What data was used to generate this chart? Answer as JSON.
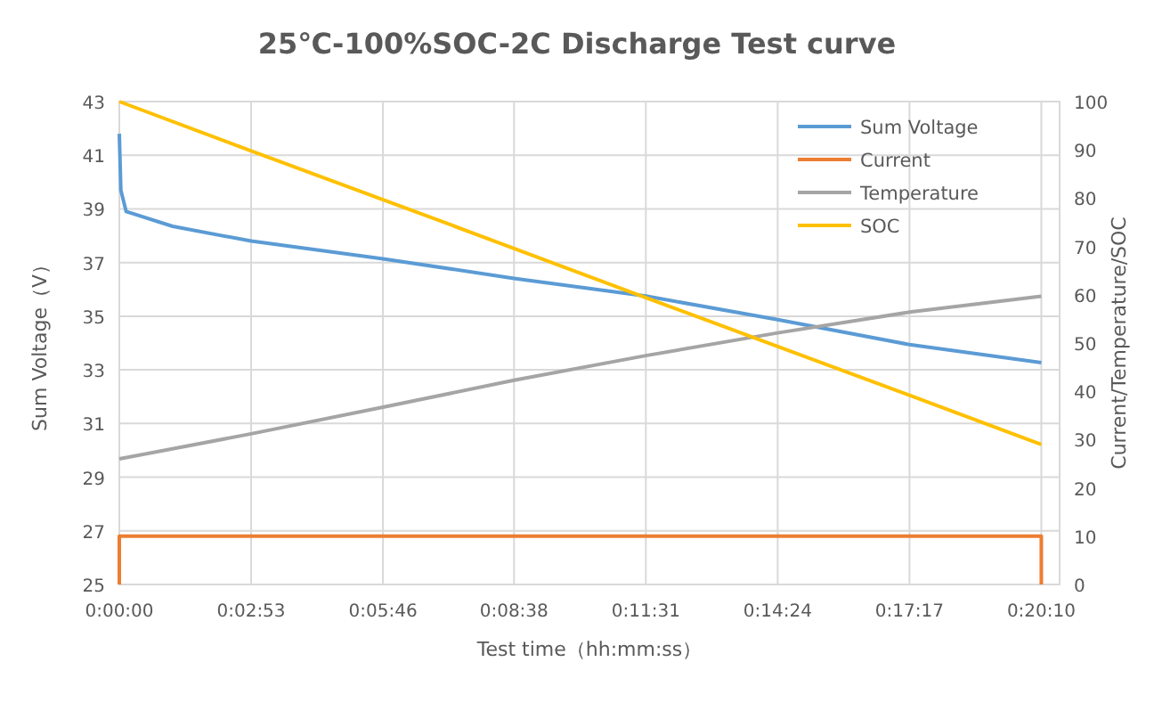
{
  "chart_data": {
    "type": "line",
    "title": "25℃-100%SOC-2C Discharge Test curve",
    "xlabel": "Test time（hh:mm:ss）",
    "ylabel": "Sum Voltage（V）",
    "y2label": "Current/Temperature/SOC",
    "xlim": [
      0,
      1234
    ],
    "ylim": [
      25,
      43
    ],
    "y2lim": [
      0,
      100
    ],
    "xticks": [
      {
        "value": 0,
        "label": "0:00:00"
      },
      {
        "value": 173,
        "label": "0:02:53"
      },
      {
        "value": 346,
        "label": "0:05:46"
      },
      {
        "value": 518,
        "label": "0:08:38"
      },
      {
        "value": 691,
        "label": "0:11:31"
      },
      {
        "value": 864,
        "label": "0:14:24"
      },
      {
        "value": 1037,
        "label": "0:17:17"
      },
      {
        "value": 1210,
        "label": "0:20:10"
      }
    ],
    "yticks": [
      25,
      27,
      29,
      31,
      33,
      35,
      37,
      39,
      41,
      43
    ],
    "y2ticks": [
      0,
      10,
      20,
      30,
      40,
      50,
      60,
      70,
      80,
      90,
      100
    ],
    "grid": true,
    "legend": "top right",
    "marker": "none",
    "line_style": "solid",
    "series": [
      {
        "name": "Sum Voltage",
        "color": "#5b9bd5",
        "x": [
          0,
          2,
          9,
          70,
          173,
          346,
          518,
          691,
          864,
          1037,
          1210
        ],
        "values": [
          41.8,
          39.7,
          38.9,
          38.35,
          37.8,
          37.14,
          36.41,
          35.75,
          34.87,
          33.94,
          33.27
        ]
      },
      {
        "name": "Current",
        "color": "#ed7d31",
        "axis": "y2",
        "x": [
          0,
          0,
          1210,
          1210
        ],
        "values": [
          0,
          10,
          10,
          0
        ]
      },
      {
        "name": "Temperature",
        "color": "#a5a5a5",
        "axis": "y2",
        "x": [
          0,
          173,
          346,
          518,
          691,
          864,
          1037,
          1210
        ],
        "values": [
          26,
          31.2,
          36.7,
          42.3,
          47.4,
          52.1,
          56.4,
          59.7
        ]
      },
      {
        "name": "SOC",
        "color": "#ffc000",
        "axis": "y2",
        "x": [
          0,
          173,
          346,
          518,
          691,
          864,
          1037,
          1210
        ],
        "values": [
          100,
          89.8,
          79.7,
          69.6,
          59.4,
          49.3,
          39.2,
          29
        ]
      }
    ]
  }
}
